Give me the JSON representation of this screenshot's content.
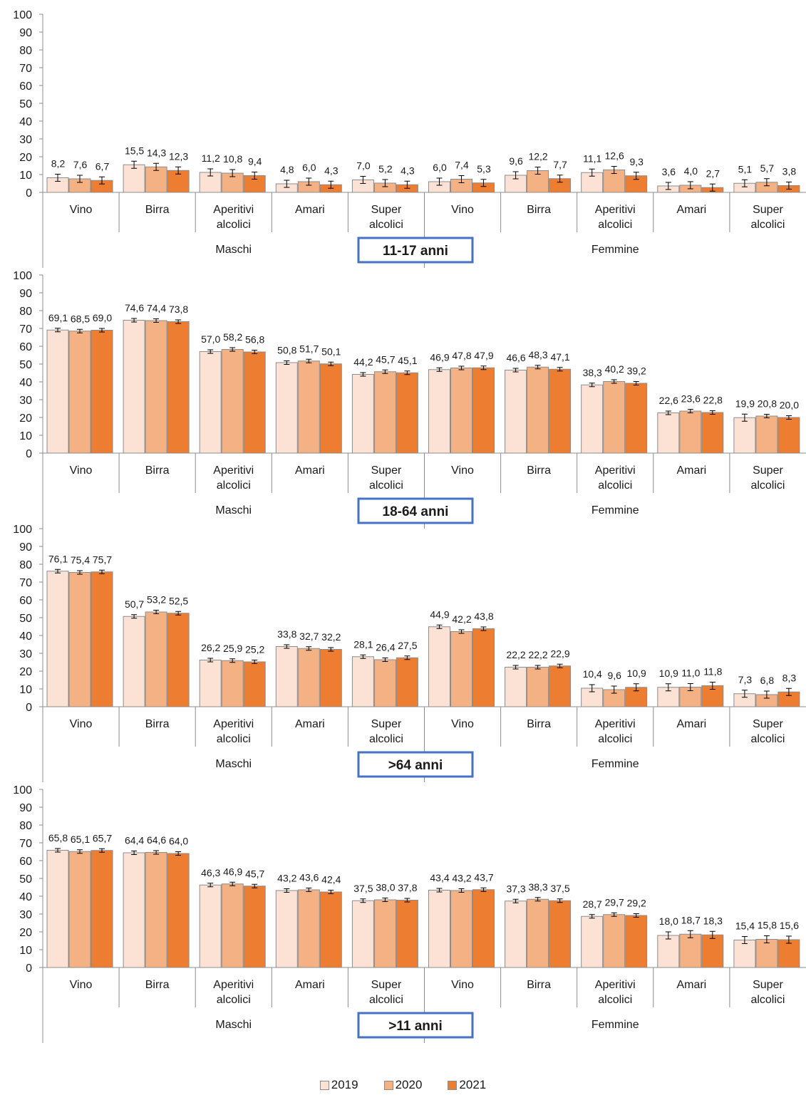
{
  "colors": {
    "2019": "#fbe2d5",
    "2020": "#f4b183",
    "2021": "#ed7d31",
    "bar_border": "#8c8c8c",
    "badge_border": "#4472c4",
    "axis": "#8c8c8c"
  },
  "chart_data": [
    {
      "type": "bar",
      "badge": "11-17 anni",
      "group_labels": [
        "Maschi",
        "Femmine"
      ],
      "categories": [
        "Vino",
        "Birra",
        "Aperitivi alcolici",
        "Amari",
        "Super alcolici",
        "Vino",
        "Birra",
        "Aperitivi alcolici",
        "Amari",
        "Super alcolici"
      ],
      "ylim": [
        0,
        100
      ],
      "yticks": [
        0,
        10,
        20,
        30,
        40,
        50,
        60,
        70,
        80,
        90,
        100
      ],
      "series": [
        {
          "name": "2019",
          "values": [
            8.2,
            15.5,
            11.2,
            4.8,
            7.0,
            6.0,
            9.6,
            11.1,
            3.6,
            5.1
          ],
          "labels": [
            "8,2",
            "15,5",
            "11,2",
            "4,8",
            "7,0",
            "6,0",
            "9,6",
            "11,1",
            "3,6",
            "5,1"
          ]
        },
        {
          "name": "2020",
          "values": [
            7.6,
            14.3,
            10.8,
            6.0,
            5.2,
            7.4,
            12.2,
            12.6,
            4.0,
            5.7
          ],
          "labels": [
            "7,6",
            "14,3",
            "10,8",
            "6,0",
            "5,2",
            "7,4",
            "12,2",
            "12,6",
            "4,0",
            "5,7"
          ]
        },
        {
          "name": "2021",
          "values": [
            6.7,
            12.3,
            9.4,
            4.3,
            4.3,
            5.3,
            7.7,
            9.3,
            2.7,
            3.8
          ],
          "labels": [
            "6,7",
            "12,3",
            "9,4",
            "4,3",
            "4,3",
            "5,3",
            "7,7",
            "9,3",
            "2,7",
            "3,8"
          ]
        }
      ]
    },
    {
      "type": "bar",
      "badge": "18-64 anni",
      "group_labels": [
        "Maschi",
        "Femmine"
      ],
      "categories": [
        "Vino",
        "Birra",
        "Aperitivi alcolici",
        "Amari",
        "Super alcolici",
        "Vino",
        "Birra",
        "Aperitivi alcolici",
        "Amari",
        "Super alcolici"
      ],
      "ylim": [
        0,
        100
      ],
      "yticks": [
        0,
        10,
        20,
        30,
        40,
        50,
        60,
        70,
        80,
        90,
        100
      ],
      "series": [
        {
          "name": "2019",
          "values": [
            69.1,
            74.6,
            57.0,
            50.8,
            44.2,
            46.9,
            46.6,
            38.3,
            22.6,
            19.9
          ],
          "labels": [
            "69,1",
            "74,6",
            "57,0",
            "50,8",
            "44,2",
            "46,9",
            "46,6",
            "38,3",
            "22,6",
            "19,9"
          ]
        },
        {
          "name": "2020",
          "values": [
            68.5,
            74.4,
            58.2,
            51.7,
            45.7,
            47.8,
            48.3,
            40.2,
            23.6,
            20.8
          ],
          "labels": [
            "68,5",
            "74,4",
            "58,2",
            "51,7",
            "45,7",
            "47,8",
            "48,3",
            "40,2",
            "23,6",
            "20,8"
          ]
        },
        {
          "name": "2021",
          "values": [
            69.0,
            73.8,
            56.8,
            50.1,
            45.1,
            47.9,
            47.1,
            39.2,
            22.8,
            20.0
          ],
          "labels": [
            "69,0",
            "73,8",
            "56,8",
            "50,1",
            "45,1",
            "47,9",
            "47,1",
            "39,2",
            "22,8",
            "20,0"
          ]
        }
      ]
    },
    {
      "type": "bar",
      "badge": ">64 anni",
      "group_labels": [
        "Maschi",
        "Femmine"
      ],
      "categories": [
        "Vino",
        "Birra",
        "Aperitivi alcolici",
        "Amari",
        "Super alcolici",
        "Vino",
        "Birra",
        "Aperitivi alcolici",
        "Amari",
        "Super alcolici"
      ],
      "ylim": [
        0,
        100
      ],
      "yticks": [
        0,
        10,
        20,
        30,
        40,
        50,
        60,
        70,
        80,
        90,
        100
      ],
      "series": [
        {
          "name": "2019",
          "values": [
            76.1,
            50.7,
            26.2,
            33.8,
            28.1,
            44.9,
            22.2,
            10.4,
            10.9,
            7.3
          ],
          "labels": [
            "76,1",
            "50,7",
            "26,2",
            "33,8",
            "28,1",
            "44,9",
            "22,2",
            "10,4",
            "10,9",
            "7,3"
          ]
        },
        {
          "name": "2020",
          "values": [
            75.4,
            53.2,
            25.9,
            32.7,
            26.4,
            42.2,
            22.2,
            9.6,
            11.0,
            6.8
          ],
          "labels": [
            "75,4",
            "53,2",
            "25,9",
            "32,7",
            "26,4",
            "42,2",
            "22,2",
            "9,6",
            "11,0",
            "6,8"
          ]
        },
        {
          "name": "2021",
          "values": [
            75.7,
            52.5,
            25.2,
            32.2,
            27.5,
            43.8,
            22.9,
            10.9,
            11.8,
            8.3
          ],
          "labels": [
            "75,7",
            "52,5",
            "25,2",
            "32,2",
            "27,5",
            "43,8",
            "22,9",
            "10,9",
            "11,8",
            "8,3"
          ]
        }
      ]
    },
    {
      "type": "bar",
      "badge": ">11 anni",
      "group_labels": [
        "Maschi",
        "Femmine"
      ],
      "categories": [
        "Vino",
        "Birra",
        "Aperitivi alcolici",
        "Amari",
        "Super alcolici",
        "Vino",
        "Birra",
        "Aperitivi alcolici",
        "Amari",
        "Super alcolici"
      ],
      "ylim": [
        0,
        100
      ],
      "yticks": [
        0,
        10,
        20,
        30,
        40,
        50,
        60,
        70,
        80,
        90,
        100
      ],
      "series": [
        {
          "name": "2019",
          "values": [
            65.8,
            64.4,
            46.3,
            43.2,
            37.5,
            43.4,
            37.3,
            28.7,
            18.0,
            15.4
          ],
          "labels": [
            "65,8",
            "64,4",
            "46,3",
            "43,2",
            "37,5",
            "43,4",
            "37,3",
            "28,7",
            "18,0",
            "15,4"
          ]
        },
        {
          "name": "2020",
          "values": [
            65.1,
            64.6,
            46.9,
            43.6,
            38.0,
            43.2,
            38.3,
            29.7,
            18.7,
            15.8
          ],
          "labels": [
            "65,1",
            "64,6",
            "46,9",
            "43,6",
            "38,0",
            "43,2",
            "38,3",
            "29,7",
            "18,7",
            "15,8"
          ]
        },
        {
          "name": "2021",
          "values": [
            65.7,
            64.0,
            45.7,
            42.4,
            37.8,
            43.7,
            37.5,
            29.2,
            18.3,
            15.6
          ],
          "labels": [
            "65,7",
            "64,0",
            "45,7",
            "42,4",
            "37,8",
            "43,7",
            "37,5",
            "29,2",
            "18,3",
            "15,6"
          ]
        }
      ]
    }
  ],
  "legend": [
    {
      "label": "2019",
      "color": "#fbe2d5"
    },
    {
      "label": "2020",
      "color": "#f4b183"
    },
    {
      "label": "2021",
      "color": "#ed7d31"
    }
  ]
}
